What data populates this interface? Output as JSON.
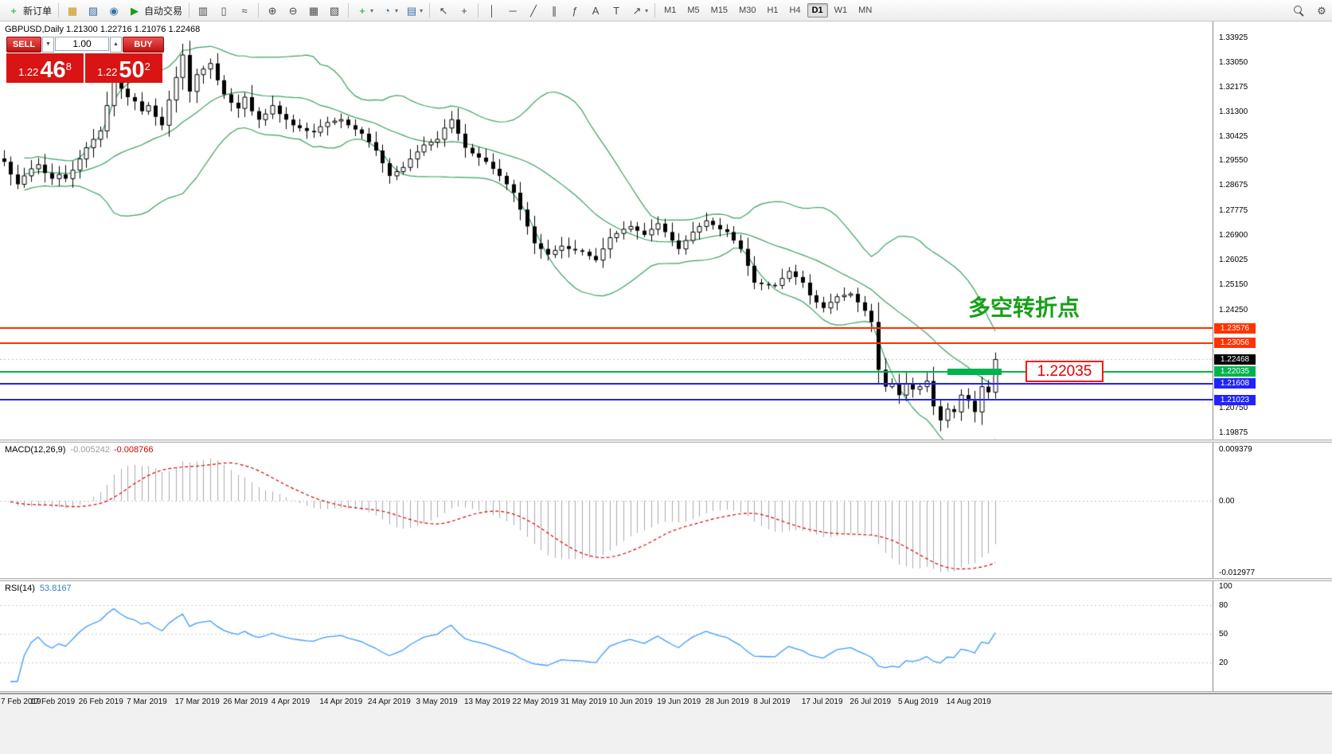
{
  "colors": {
    "button_red": "#bd1212",
    "price_box_red": "#d81414",
    "band_green": "#3aa25f",
    "line_red": "#ff3200",
    "line_green": "#00b34d",
    "line_blue": "#2222ff",
    "rsi_blue": "#3b9cff",
    "macd_signal_red": "#e00000",
    "macd_hist_gray": "#ababab",
    "annotation_green": "#17a017"
  },
  "toolbar": {
    "timeframes": [
      "M1",
      "M5",
      "M15",
      "M30",
      "H1",
      "H4",
      "D1",
      "W1",
      "MN"
    ],
    "active_timeframe": "D1",
    "items": [
      {
        "name": "new-order-button",
        "label": "新订单",
        "glyph": "+",
        "glyph_color": "#18a018"
      },
      {
        "sep": true
      },
      {
        "name": "new-chart-icon",
        "glyph": "▦",
        "glyph_color": "#c79100"
      },
      {
        "name": "profiles-icon",
        "glyph": "▨",
        "glyph_color": "#3b6ea5"
      },
      {
        "name": "market-watch-icon",
        "glyph": "◉",
        "glyph_color": "#3b6ea5"
      },
      {
        "name": "autotrading-button",
        "label": "自动交易",
        "glyph": "▶",
        "glyph_color": "#18a018"
      },
      {
        "sep": true
      },
      {
        "name": "bar-chart-icon",
        "glyph": "▥"
      },
      {
        "name": "candlestick-chart-icon",
        "glyph": "▯"
      },
      {
        "name": "line-chart-icon",
        "glyph": "≈"
      },
      {
        "sep": true
      },
      {
        "name": "zoom-in-icon",
        "glyph": "⊕"
      },
      {
        "name": "zoom-out-icon",
        "glyph": "⊖"
      },
      {
        "name": "tile-windows-icon",
        "glyph": "▦"
      },
      {
        "name": "auto-arrange-icon",
        "glyph": "▧"
      },
      {
        "sep": true
      },
      {
        "name": "indicators-icon",
        "glyph": "+",
        "glyph_color": "#18a018",
        "caret": true
      },
      {
        "name": "periods-icon",
        "glyph": "◔",
        "glyph_color": "#3b6ea5",
        "caret": true
      },
      {
        "name": "template-icon",
        "glyph": "▤",
        "glyph_color": "#3b6ea5",
        "caret": true
      },
      {
        "sep": true
      },
      {
        "name": "cursor-icon",
        "glyph": "↖"
      },
      {
        "name": "crosshair-icon",
        "glyph": "+"
      },
      {
        "sep": true
      },
      {
        "name": "vertical-line-icon",
        "glyph": "│"
      },
      {
        "name": "horizontal-line-icon",
        "glyph": "─"
      },
      {
        "name": "trendline-icon",
        "glyph": "╱"
      },
      {
        "name": "channel-icon",
        "glyph": "∥"
      },
      {
        "name": "fibonacci-icon",
        "glyph": "ƒ"
      },
      {
        "name": "text-icon",
        "glyph": "A"
      },
      {
        "name": "text-label-icon",
        "glyph": "T"
      },
      {
        "name": "arrows-icon",
        "glyph": "↗",
        "caret": true
      },
      {
        "sep": true
      },
      {
        "tf_group": true
      },
      {
        "spacer": true
      },
      {
        "name": "search-icon",
        "css_icon": "magnifier"
      },
      {
        "name": "settings-icon",
        "glyph": "⚙"
      }
    ]
  },
  "price_pane": {
    "ohlc_header": "GBPUSD,Daily 1.21300 1.22716 1.21076 1.22468",
    "one_click": {
      "sell_label": "SELL",
      "buy_label": "BUY",
      "volume": "1.00",
      "down_glyph": "▼",
      "up_glyph": "▲",
      "sell_price": {
        "base": "1.22",
        "big": "46",
        "sup": "8"
      },
      "buy_price": {
        "base": "1.22",
        "big": "50",
        "sup": "2"
      }
    },
    "scale_ticks": [
      "1.33925",
      "1.33050",
      "1.32175",
      "1.31300",
      "1.30425",
      "1.29550",
      "1.28675",
      "1.27775",
      "1.26900",
      "1.26025",
      "1.25150",
      "1.24250",
      "1.20750",
      "1.19875"
    ],
    "current_price": {
      "value": "1.22468",
      "box_color": "#000000"
    },
    "hlines": [
      {
        "price": "1.23576",
        "color": "#ff3200"
      },
      {
        "price": "1.23056",
        "color": "#ff3200"
      },
      {
        "price": "1.22035",
        "color": "#00b34d",
        "highlight": true
      },
      {
        "price": "1.21608",
        "color": "#2222ff"
      },
      {
        "price": "1.21023",
        "color": "#2222ff"
      }
    ],
    "annotation": "多空转折点",
    "callout": "1.22035"
  },
  "macd_pane": {
    "label": "MACD(12,26,9)",
    "value_main": "-0.005242",
    "value_signal": "-0.008766",
    "scale": {
      "max": "0.009379",
      "zero": "0.00",
      "min": "-0.012977"
    }
  },
  "rsi_pane": {
    "label": "RSI(14)",
    "value": "53.8167",
    "levels": [
      "100",
      "80",
      "50",
      "20"
    ]
  },
  "time_axis": {
    "dates": [
      "7 Feb 2019",
      "17 Feb 2019",
      "26 Feb 2019",
      "7 Mar 2019",
      "17 Mar 2019",
      "26 Mar 2019",
      "4 Apr 2019",
      "14 Apr 2019",
      "24 Apr 2019",
      "3 May 2019",
      "13 May 2019",
      "22 May 2019",
      "31 May 2019",
      "10 Jun 2019",
      "19 Jun 2019",
      "28 Jun 2019",
      "8 Jul 2019",
      "17 Jul 2019",
      "26 Jul 2019",
      "5 Aug 2019",
      "14 Aug 2019"
    ]
  },
  "chart_data": {
    "type": "candlestick",
    "symbol": "GBPUSD",
    "period": "Daily",
    "visible_price_range": {
      "top": 1.3449,
      "bottom": 1.1962
    },
    "closes": [
      1.295,
      1.2905,
      1.287,
      1.29,
      1.2925,
      1.294,
      1.291,
      1.289,
      1.2905,
      1.289,
      1.292,
      1.296,
      1.3,
      1.303,
      1.306,
      1.315,
      1.325,
      1.321,
      1.318,
      1.3165,
      1.313,
      1.315,
      1.311,
      1.308,
      1.317,
      1.325,
      1.333,
      1.32,
      1.326,
      1.328,
      1.33,
      1.324,
      1.319,
      1.316,
      1.314,
      1.318,
      1.313,
      1.31,
      1.312,
      1.315,
      1.312,
      1.31,
      1.308,
      1.307,
      1.306,
      1.3055,
      1.3075,
      1.309,
      1.3095,
      1.31,
      1.308,
      1.3065,
      1.305,
      1.302,
      1.299,
      1.2945,
      1.29,
      1.2915,
      1.293,
      1.296,
      1.2985,
      1.301,
      1.302,
      1.303,
      1.307,
      1.31,
      1.305,
      1.3,
      1.298,
      1.2965,
      1.295,
      1.2925,
      1.29,
      1.287,
      1.284,
      1.278,
      1.272,
      1.266,
      1.264,
      1.262,
      1.2635,
      1.265,
      1.264,
      1.2635,
      1.263,
      1.2615,
      1.26,
      1.264,
      1.268,
      1.2695,
      1.271,
      1.272,
      1.2705,
      1.269,
      1.271,
      1.273,
      1.27,
      1.267,
      1.264,
      1.267,
      1.27,
      1.272,
      1.274,
      1.2725,
      1.271,
      1.27,
      1.267,
      1.264,
      1.258,
      1.252,
      1.2515,
      1.2512,
      1.251,
      1.2535,
      1.256,
      1.254,
      1.252,
      1.2475,
      1.245,
      1.243,
      1.245,
      1.247,
      1.2475,
      1.248,
      1.245,
      1.242,
      1.238,
      1.221,
      1.215,
      1.216,
      1.212,
      1.216,
      1.214,
      1.215,
      1.217,
      1.208,
      1.203,
      1.207,
      1.206,
      1.212,
      1.21,
      1.206,
      1.215,
      1.213,
      1.2247
    ],
    "last_candle": {
      "open": 1.213,
      "high": 1.22716,
      "low": 1.21076,
      "close": 1.22468
    },
    "indicators": {
      "bollinger": {
        "period": 20,
        "deviation": 2
      },
      "macd": {
        "fast": 12,
        "slow": 26,
        "signal": 9
      },
      "rsi": {
        "period": 14
      }
    }
  }
}
